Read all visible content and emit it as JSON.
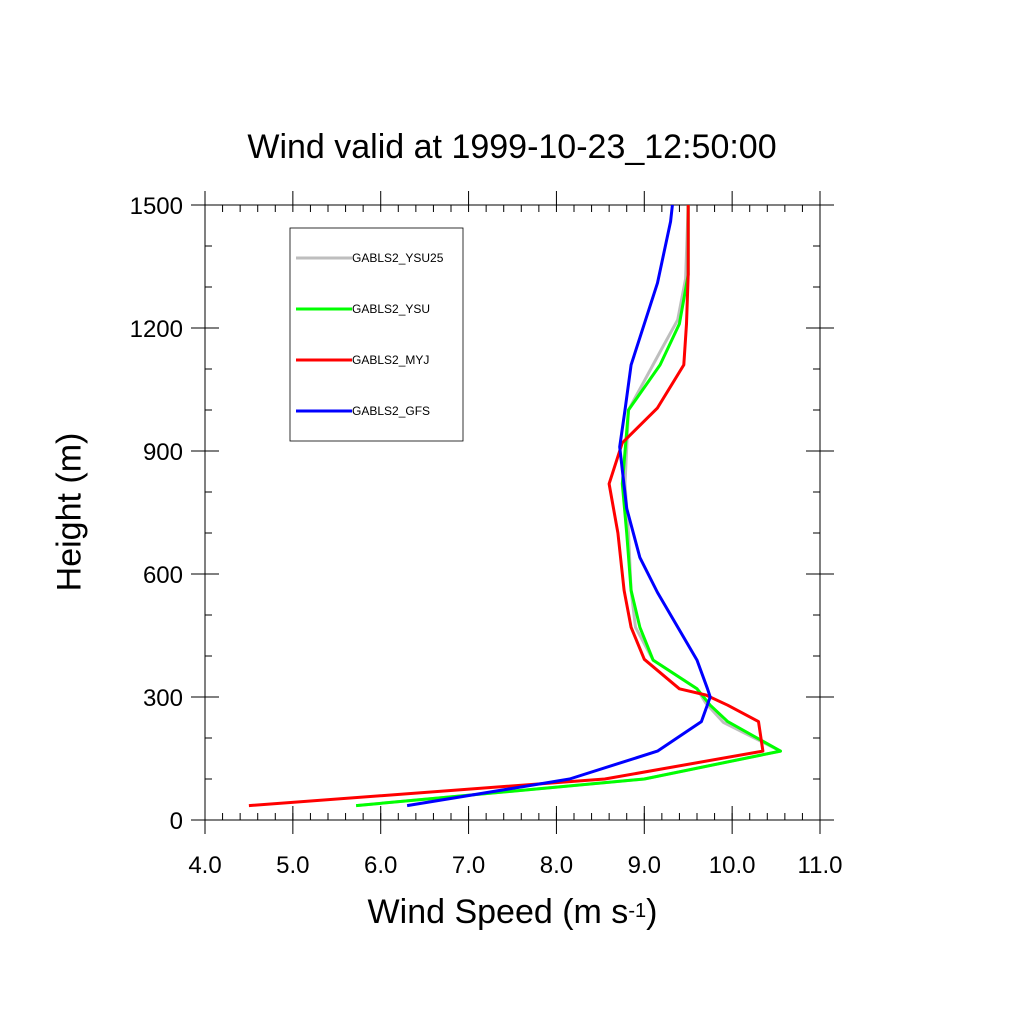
{
  "chart_data": {
    "type": "line",
    "title": "Wind valid at 1999-10-23_12:50:00",
    "xlabel_main": "Wind Speed (m s",
    "xlabel_sup": "-1",
    "xlabel_tail": ")",
    "ylabel": "Height (m)",
    "xlim": [
      4.0,
      11.0
    ],
    "ylim": [
      0,
      1500
    ],
    "xticks": [
      "4.0",
      "5.0",
      "6.0",
      "7.0",
      "8.0",
      "9.0",
      "10.0",
      "11.0"
    ],
    "xtick_values": [
      4,
      5,
      6,
      7,
      8,
      9,
      10,
      11
    ],
    "yticks": [
      "0",
      "300",
      "600",
      "900",
      "1200",
      "1500"
    ],
    "ytick_values": [
      0,
      300,
      600,
      900,
      1200,
      1500
    ],
    "legend_position": "top-left",
    "series": [
      {
        "name": "GABLS2_YSU25",
        "color": "#bebebe",
        "points": [
          [
            5.72,
            35
          ],
          [
            9.0,
            100
          ],
          [
            10.55,
            168
          ],
          [
            9.9,
            238
          ],
          [
            9.7,
            285
          ],
          [
            9.6,
            320
          ],
          [
            9.1,
            390
          ],
          [
            8.9,
            470
          ],
          [
            8.85,
            560
          ],
          [
            8.82,
            700
          ],
          [
            8.78,
            820
          ],
          [
            8.82,
            1000
          ],
          [
            9.2,
            1150
          ],
          [
            9.38,
            1220
          ],
          [
            9.47,
            1320
          ],
          [
            9.5,
            1500
          ]
        ]
      },
      {
        "name": "GABLS2_YSU",
        "color": "#00ff00",
        "points": [
          [
            5.72,
            35
          ],
          [
            9.0,
            100
          ],
          [
            10.55,
            168
          ],
          [
            9.95,
            240
          ],
          [
            9.75,
            280
          ],
          [
            9.6,
            320
          ],
          [
            9.1,
            390
          ],
          [
            8.95,
            470
          ],
          [
            8.85,
            560
          ],
          [
            8.8,
            700
          ],
          [
            8.75,
            820
          ],
          [
            8.82,
            1000
          ],
          [
            9.18,
            1110
          ],
          [
            9.4,
            1210
          ],
          [
            9.5,
            1330
          ],
          [
            9.5,
            1500
          ]
        ]
      },
      {
        "name": "GABLS2_MYJ",
        "color": "#ff0000",
        "points": [
          [
            4.5,
            35
          ],
          [
            8.55,
            100
          ],
          [
            10.35,
            168
          ],
          [
            10.3,
            240
          ],
          [
            9.95,
            280
          ],
          [
            9.7,
            305
          ],
          [
            9.4,
            320
          ],
          [
            9.0,
            392
          ],
          [
            8.85,
            470
          ],
          [
            8.77,
            560
          ],
          [
            8.7,
            700
          ],
          [
            8.6,
            820
          ],
          [
            8.75,
            920
          ],
          [
            9.15,
            1005
          ],
          [
            9.45,
            1110
          ],
          [
            9.48,
            1210
          ],
          [
            9.5,
            1330
          ],
          [
            9.5,
            1500
          ]
        ]
      },
      {
        "name": "GABLS2_GFS",
        "color": "#0000ff",
        "points": [
          [
            6.3,
            35
          ],
          [
            8.15,
            100
          ],
          [
            9.15,
            168
          ],
          [
            9.65,
            240
          ],
          [
            9.75,
            300
          ],
          [
            9.72,
            320
          ],
          [
            9.6,
            390
          ],
          [
            9.15,
            555
          ],
          [
            8.95,
            640
          ],
          [
            8.8,
            760
          ],
          [
            8.72,
            910
          ],
          [
            8.78,
            1000
          ],
          [
            8.85,
            1110
          ],
          [
            9.15,
            1310
          ],
          [
            9.3,
            1460
          ],
          [
            9.32,
            1500
          ]
        ]
      }
    ]
  }
}
